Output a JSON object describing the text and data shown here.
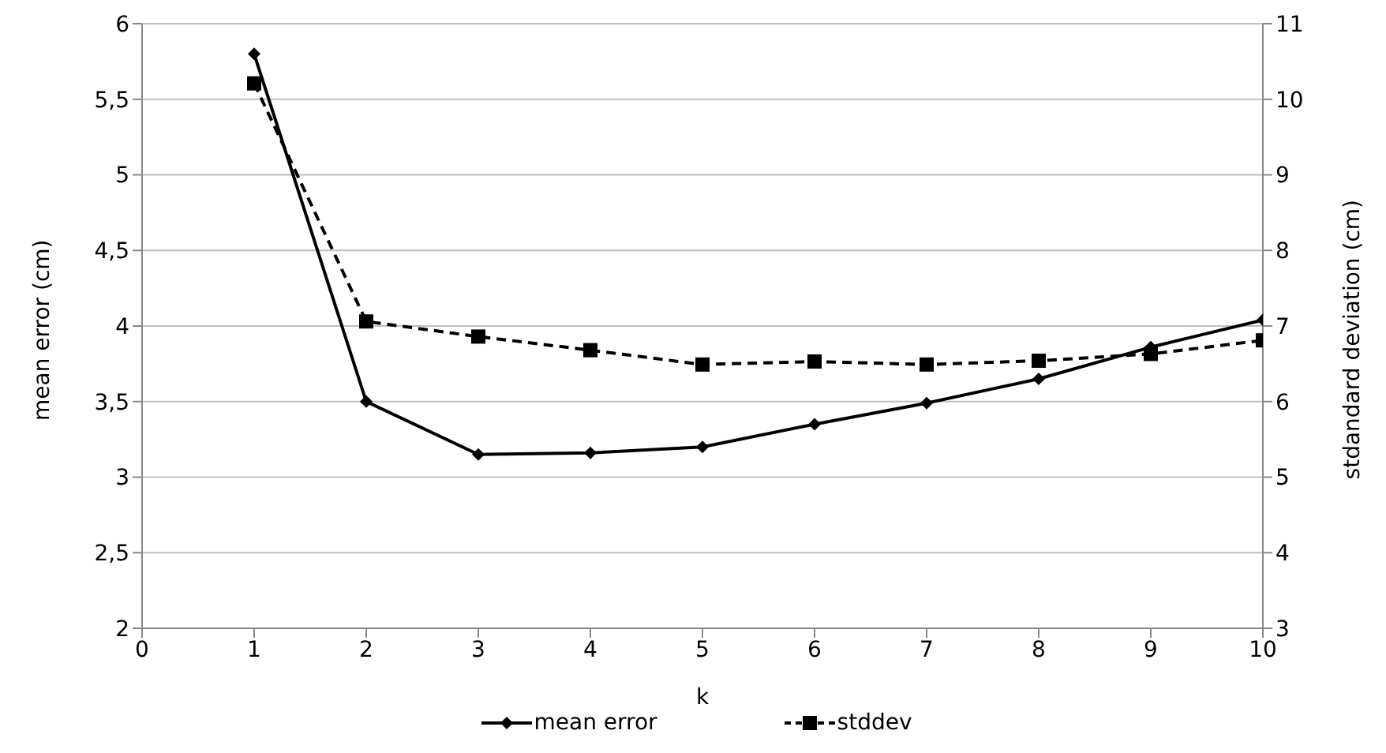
{
  "chart_data": {
    "type": "line",
    "xlabel": "k",
    "ylabel": "mean error (cm)",
    "y2label": "stdandard deviation (cm)",
    "x": [
      1,
      2,
      3,
      4,
      5,
      6,
      7,
      8,
      9,
      10
    ],
    "xlim": [
      0,
      10
    ],
    "xticks": [
      0,
      1,
      2,
      3,
      4,
      5,
      6,
      7,
      8,
      9,
      10
    ],
    "ylim": [
      2,
      6
    ],
    "yticks": [
      2,
      {
        "value": 2.5,
        "label": "2,5"
      },
      3,
      {
        "value": 3.5,
        "label": "3,5"
      },
      4,
      {
        "value": 4.5,
        "label": "4,5"
      },
      5,
      {
        "value": 5.5,
        "label": "5,5"
      },
      6
    ],
    "y2lim": [
      3,
      11
    ],
    "y2ticks": [
      3,
      4,
      5,
      6,
      7,
      8,
      9,
      10,
      11
    ],
    "grid": "y",
    "legend": "bottom",
    "series": [
      {
        "name": "mean error",
        "color": "#000000",
        "marker": "diamond",
        "line_style": "solid",
        "values": [
          5.8,
          3.5,
          3.15,
          3.16,
          3.2,
          3.35,
          3.49,
          3.65,
          3.86,
          4.04
        ]
      },
      {
        "name": "stddev",
        "color": "#000000",
        "marker": "square",
        "line_style": "dashed",
        "axis": "y2",
        "values": [
          10.21,
          7.06,
          6.86,
          6.68,
          6.49,
          6.53,
          6.49,
          6.54,
          6.63,
          6.81
        ]
      }
    ]
  }
}
